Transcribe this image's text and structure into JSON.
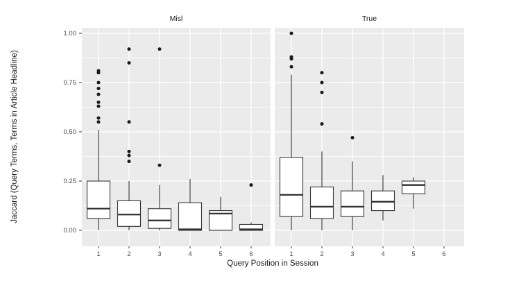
{
  "colors": {
    "panel_bg": "#EBEBEB",
    "strip_bg": "#D9D9D9",
    "grid": "#FFFFFF",
    "box_stroke": "#333333",
    "box_fill": "#FFFFFF",
    "outlier": "#1A1A1A",
    "axis_text": "#4D4D4D",
    "tick_mark": "#333333",
    "title_text": "#1A1A1A"
  },
  "chart_data": {
    "type": "boxplot",
    "title": "",
    "xlabel": "Query Position in Session",
    "ylabel": "Jaccard (Query Terms, Terms in Article Headline)",
    "ylim": [
      -0.08,
      1.06
    ],
    "y_ticks": [
      0,
      0.25,
      0.5,
      0.75,
      1.0
    ],
    "y_tick_labels": [
      "0.00",
      "0.25",
      "0.50",
      "0.75",
      "1.00"
    ],
    "y_minor_ticks": [
      0.125,
      0.375,
      0.625,
      0.875
    ],
    "x_tick_labels": [
      "1",
      "2",
      "3",
      "4",
      "5",
      "6"
    ],
    "grid": true,
    "legend": "none",
    "facets": [
      {
        "label": "Misl",
        "boxes": [
          {
            "x": 1,
            "whisker_low": 0.0,
            "q1": 0.06,
            "median": 0.11,
            "q3": 0.25,
            "whisker_high": 0.51,
            "outliers": [
              0.81,
              0.8,
              0.75,
              0.72,
              0.69,
              0.65,
              0.63,
              0.57,
              0.55
            ]
          },
          {
            "x": 2,
            "whisker_low": 0.0,
            "q1": 0.02,
            "median": 0.08,
            "q3": 0.15,
            "whisker_high": 0.25,
            "outliers": [
              0.92,
              0.85,
              0.55,
              0.4,
              0.38,
              0.35
            ]
          },
          {
            "x": 3,
            "whisker_low": 0.0,
            "q1": 0.01,
            "median": 0.05,
            "q3": 0.11,
            "whisker_high": 0.23,
            "outliers": [
              0.92,
              0.33
            ]
          },
          {
            "x": 4,
            "whisker_low": 0.0,
            "q1": 0.0,
            "median": 0.005,
            "q3": 0.14,
            "whisker_high": 0.26,
            "outliers": []
          },
          {
            "x": 5,
            "whisker_low": 0.0,
            "q1": 0.0,
            "median": 0.085,
            "q3": 0.1,
            "whisker_high": 0.17,
            "outliers": []
          },
          {
            "x": 6,
            "whisker_low": 0.0,
            "q1": 0.0,
            "median": 0.005,
            "q3": 0.03,
            "whisker_high": 0.04,
            "outliers": [
              0.23
            ]
          }
        ]
      },
      {
        "label": "True",
        "boxes": [
          {
            "x": 1,
            "whisker_low": 0.0,
            "q1": 0.07,
            "median": 0.18,
            "q3": 0.37,
            "whisker_high": 0.79,
            "outliers": [
              1.0,
              0.88,
              0.87,
              0.83
            ]
          },
          {
            "x": 2,
            "whisker_low": 0.0,
            "q1": 0.06,
            "median": 0.12,
            "q3": 0.22,
            "whisker_high": 0.4,
            "outliers": [
              0.8,
              0.75,
              0.7,
              0.54
            ]
          },
          {
            "x": 3,
            "whisker_low": 0.0,
            "q1": 0.07,
            "median": 0.12,
            "q3": 0.2,
            "whisker_high": 0.35,
            "outliers": [
              0.47
            ]
          },
          {
            "x": 4,
            "whisker_low": 0.05,
            "q1": 0.1,
            "median": 0.145,
            "q3": 0.2,
            "whisker_high": 0.28,
            "outliers": []
          },
          {
            "x": 5,
            "whisker_low": 0.11,
            "q1": 0.185,
            "median": 0.23,
            "q3": 0.25,
            "whisker_high": 0.27,
            "outliers": []
          }
        ]
      }
    ]
  }
}
